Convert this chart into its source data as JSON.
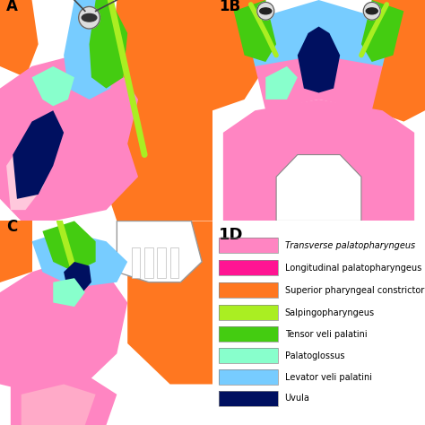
{
  "background_color": "#ffffff",
  "legend_title": "1D",
  "legend_items": [
    {
      "color": "#FF85C2",
      "label": "Transverse palatopharyngeus"
    },
    {
      "color": "#FF1493",
      "label": "Longitudinal palatopharyngeus"
    },
    {
      "color": "#FF7720",
      "label": "Superior pharyngeal constrictor"
    },
    {
      "color": "#AAEE22",
      "label": "Salpingopharyngeus"
    },
    {
      "color": "#44CC11",
      "label": "Tensor veli palatini"
    },
    {
      "color": "#88FFCC",
      "label": "Palatoglossus"
    },
    {
      "color": "#77CCFF",
      "label": "Levator veli palatini"
    },
    {
      "color": "#001060",
      "label": "Uvula"
    }
  ],
  "panel_labels": [
    "A",
    "1B",
    "C",
    "1D"
  ],
  "figsize": [
    4.74,
    4.74
  ],
  "dpi": 100,
  "colors": {
    "pink_light": "#FFB0D0",
    "pink_bright": "#FF85C2",
    "pink_hot": "#FF1493",
    "orange": "#FF7720",
    "lime": "#AAEE22",
    "green": "#44CC11",
    "mint": "#88FFCC",
    "sky": "#77CCFF",
    "navy": "#001060",
    "white": "#ffffff",
    "cream": "#FFF0E8",
    "gray": "#AAAAAA",
    "lt_pink": "#FFC8DC"
  }
}
